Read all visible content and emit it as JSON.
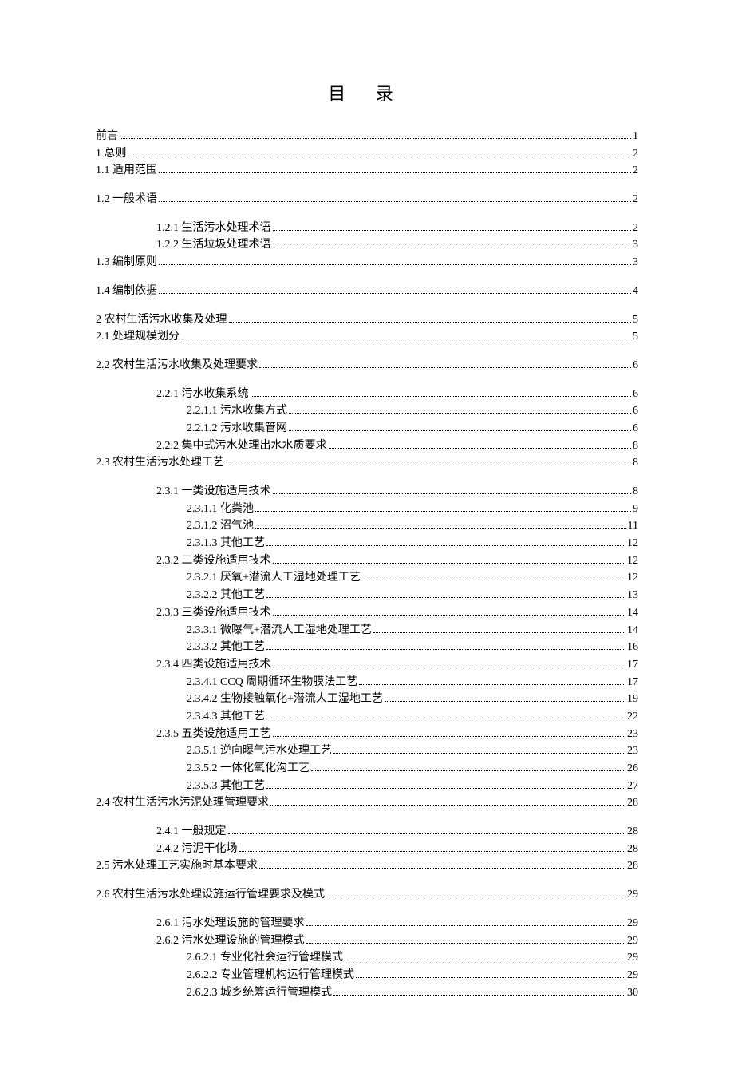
{
  "title": "目 录",
  "entries": [
    {
      "label": "前言",
      "page": "1",
      "level": 0,
      "gap": false
    },
    {
      "label": "1 总则",
      "page": "2",
      "level": 0,
      "gap": false
    },
    {
      "label": "1.1 适用范围",
      "page": "2",
      "level": 1,
      "gap": false
    },
    {
      "label": "1.2 一般术语",
      "page": "2",
      "level": 1,
      "gap": true
    },
    {
      "label": "1.2.1 生活污水处理术语",
      "page": "2",
      "level": 2,
      "gap": true
    },
    {
      "label": "1.2.2 生活垃圾处理术语",
      "page": "3",
      "level": 2,
      "gap": false
    },
    {
      "label": "1.3 编制原则",
      "page": "3",
      "level": 1,
      "gap": false
    },
    {
      "label": "1.4 编制依据",
      "page": "4",
      "level": 1,
      "gap": true
    },
    {
      "label": "2 农村生活污水收集及处理",
      "page": "5",
      "level": 0,
      "gap": true
    },
    {
      "label": "2.1 处理规模划分",
      "page": "5",
      "level": 1,
      "gap": false
    },
    {
      "label": "2.2 农村生活污水收集及处理要求",
      "page": "6",
      "level": 1,
      "gap": true
    },
    {
      "label": "2.2.1 污水收集系统",
      "page": "6",
      "level": 2,
      "gap": true
    },
    {
      "label": "2.2.1.1 污水收集方式",
      "page": "6",
      "level": 3,
      "gap": false
    },
    {
      "label": "2.2.1.2 污水收集管网",
      "page": "6",
      "level": 3,
      "gap": false
    },
    {
      "label": "2.2.2 集中式污水处理出水水质要求",
      "page": "8",
      "level": 2,
      "gap": false
    },
    {
      "label": "2.3 农村生活污水处理工艺",
      "page": "8",
      "level": 1,
      "gap": false
    },
    {
      "label": "2.3.1 一类设施适用技术",
      "page": "8",
      "level": 2,
      "gap": true
    },
    {
      "label": "2.3.1.1 化粪池",
      "page": "9",
      "level": 3,
      "gap": false
    },
    {
      "label": "2.3.1.2 沼气池",
      "page": "11",
      "level": 3,
      "gap": false
    },
    {
      "label": "2.3.1.3 其他工艺",
      "page": "12",
      "level": 3,
      "gap": false
    },
    {
      "label": "2.3.2 二类设施适用技术",
      "page": "12",
      "level": 2,
      "gap": false
    },
    {
      "label": "2.3.2.1 厌氧+潜流人工湿地处理工艺",
      "page": "12",
      "level": 3,
      "gap": false
    },
    {
      "label": "2.3.2.2 其他工艺",
      "page": "13",
      "level": 3,
      "gap": false
    },
    {
      "label": "2.3.3 三类设施适用技术",
      "page": "14",
      "level": 2,
      "gap": false
    },
    {
      "label": "2.3.3.1 微曝气+潜流人工湿地处理工艺",
      "page": "14",
      "level": 3,
      "gap": false
    },
    {
      "label": "2.3.3.2 其他工艺",
      "page": "16",
      "level": 3,
      "gap": false
    },
    {
      "label": "2.3.4 四类设施适用技术",
      "page": "17",
      "level": 2,
      "gap": false
    },
    {
      "label": "2.3.4.1 CCQ 周期循环生物膜法工艺",
      "page": "17",
      "level": 3,
      "gap": false
    },
    {
      "label": "2.3.4.2 生物接触氧化+潜流人工湿地工艺",
      "page": "19",
      "level": 3,
      "gap": false
    },
    {
      "label": "2.3.4.3 其他工艺",
      "page": "22",
      "level": 3,
      "gap": false
    },
    {
      "label": "2.3.5 五类设施适用工艺",
      "page": "23",
      "level": 2,
      "gap": false
    },
    {
      "label": "2.3.5.1 逆向曝气污水处理工艺",
      "page": "23",
      "level": 3,
      "gap": false
    },
    {
      "label": "2.3.5.2 一体化氧化沟工艺",
      "page": "26",
      "level": 3,
      "gap": false
    },
    {
      "label": "2.3.5.3 其他工艺",
      "page": "27",
      "level": 3,
      "gap": false
    },
    {
      "label": "2.4 农村生活污水污泥处理管理要求",
      "page": "28",
      "level": 1,
      "gap": false
    },
    {
      "label": "2.4.1 一般规定",
      "page": "28",
      "level": 2,
      "gap": true
    },
    {
      "label": "2.4.2 污泥干化场",
      "page": "28",
      "level": 2,
      "gap": false
    },
    {
      "label": "2.5 污水处理工艺实施时基本要求",
      "page": "28",
      "level": 1,
      "gap": false
    },
    {
      "label": "2.6 农村生活污水处理设施运行管理要求及模式",
      "page": "29",
      "level": 1,
      "gap": true
    },
    {
      "label": "2.6.1 污水处理设施的管理要求",
      "page": "29",
      "level": 2,
      "gap": true
    },
    {
      "label": "2.6.2 污水处理设施的管理模式",
      "page": "29",
      "level": 2,
      "gap": false
    },
    {
      "label": "2.6.2.1 专业化社会运行管理模式",
      "page": "29",
      "level": 3,
      "gap": false
    },
    {
      "label": "2.6.2.2 专业管理机构运行管理模式",
      "page": "29",
      "level": 3,
      "gap": false
    },
    {
      "label": "2.6.2.3 城乡统筹运行管理模式",
      "page": "30",
      "level": 3,
      "gap": false
    }
  ]
}
